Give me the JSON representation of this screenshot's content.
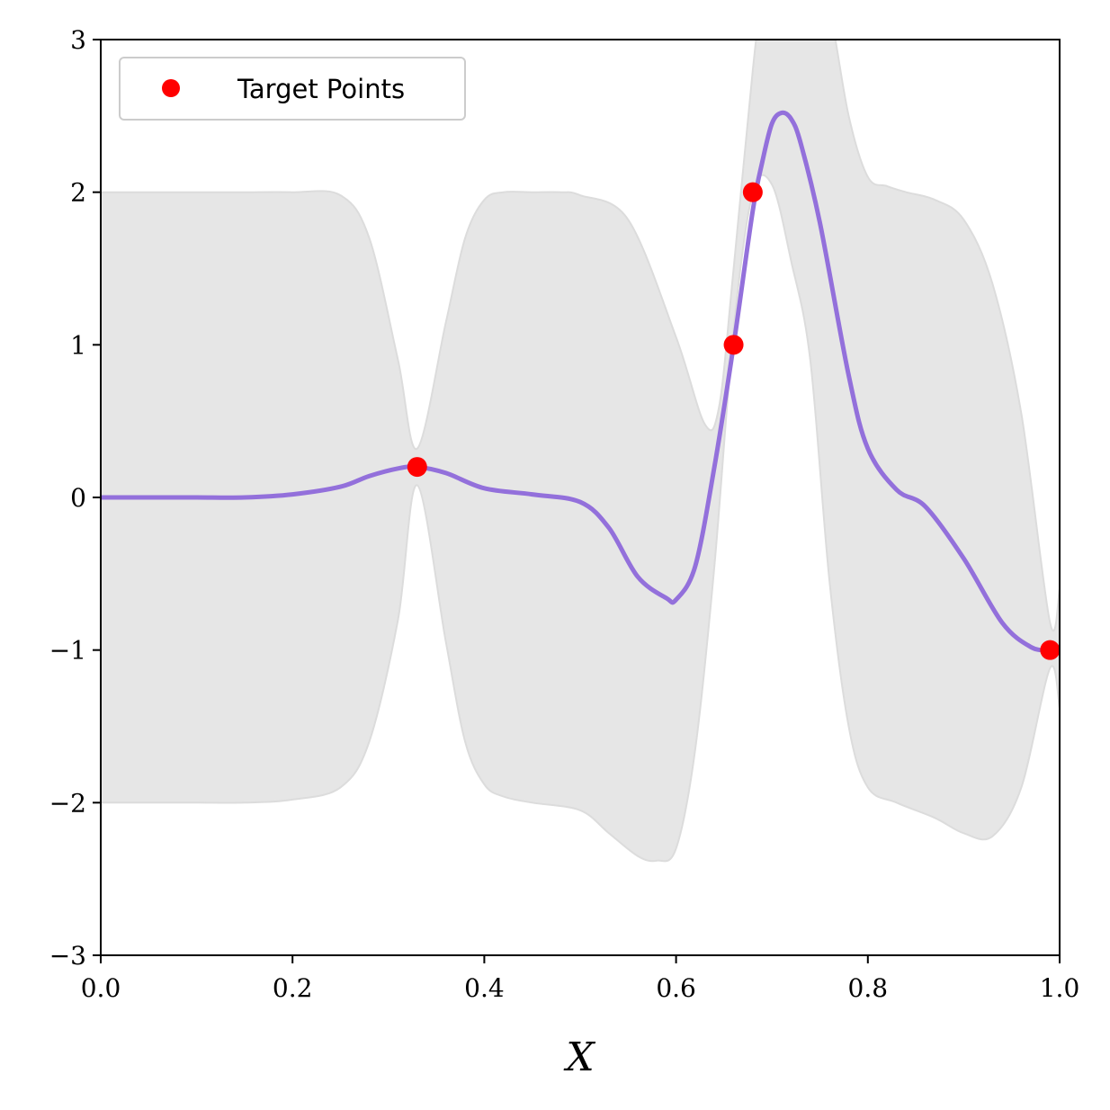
{
  "chart_data": {
    "type": "line",
    "title": "",
    "xlabel": "X",
    "ylabel": "",
    "xlim": [
      0.0,
      1.0
    ],
    "ylim": [
      -3,
      3
    ],
    "xticks": [
      "0.0",
      "0.2",
      "0.4",
      "0.6",
      "0.8",
      "1.0"
    ],
    "yticks": [
      "3",
      "2",
      "1",
      "0",
      "−1",
      "−2",
      "−3"
    ],
    "grid": false,
    "legend": {
      "position": "top-left",
      "entries": [
        "Target Points"
      ]
    },
    "colors": {
      "mean": "#9370DB",
      "band": "#e6e6e6",
      "band_edge": "#dcdcdc",
      "points": "#ff0000"
    },
    "series": [
      {
        "kind": "mean-line",
        "x": [
          0.0,
          0.05,
          0.1,
          0.15,
          0.2,
          0.25,
          0.28,
          0.31,
          0.33,
          0.36,
          0.4,
          0.45,
          0.5,
          0.53,
          0.56,
          0.59,
          0.6,
          0.62,
          0.64,
          0.66,
          0.68,
          0.69,
          0.7,
          0.71,
          0.72,
          0.73,
          0.75,
          0.78,
          0.8,
          0.83,
          0.86,
          0.9,
          0.94,
          0.97,
          0.99,
          1.0
        ],
        "y": [
          0.0,
          0.0,
          0.0,
          0.0,
          0.02,
          0.07,
          0.14,
          0.19,
          0.2,
          0.16,
          0.06,
          0.02,
          -0.03,
          -0.2,
          -0.52,
          -0.66,
          -0.67,
          -0.45,
          0.2,
          1.0,
          1.88,
          2.2,
          2.45,
          2.52,
          2.48,
          2.32,
          1.8,
          0.8,
          0.32,
          0.05,
          -0.06,
          -0.4,
          -0.82,
          -0.98,
          -1.0,
          -1.0
        ]
      },
      {
        "kind": "band-upper",
        "x": [
          0.0,
          0.05,
          0.1,
          0.15,
          0.2,
          0.25,
          0.28,
          0.31,
          0.33,
          0.36,
          0.38,
          0.4,
          0.42,
          0.45,
          0.48,
          0.5,
          0.55,
          0.6,
          0.63,
          0.645,
          0.66,
          0.68,
          0.69,
          0.7,
          0.72,
          0.74,
          0.76,
          0.78,
          0.8,
          0.82,
          0.84,
          0.87,
          0.9,
          0.93,
          0.96,
          0.99,
          1.0
        ],
        "y": [
          2.0,
          2.0,
          2.0,
          2.0,
          2.0,
          1.98,
          1.7,
          0.9,
          0.32,
          1.15,
          1.7,
          1.95,
          2.0,
          2.0,
          2.0,
          1.98,
          1.82,
          1.05,
          0.48,
          0.6,
          1.5,
          2.8,
          3.3,
          3.5,
          3.6,
          3.55,
          3.2,
          2.5,
          2.1,
          2.04,
          2.0,
          1.95,
          1.82,
          1.4,
          0.55,
          -0.82,
          -0.6
        ]
      },
      {
        "kind": "band-lower",
        "x": [
          0.0,
          0.05,
          0.1,
          0.15,
          0.2,
          0.25,
          0.28,
          0.31,
          0.33,
          0.36,
          0.38,
          0.4,
          0.42,
          0.45,
          0.5,
          0.53,
          0.56,
          0.58,
          0.6,
          0.62,
          0.64,
          0.66,
          0.68,
          0.7,
          0.72,
          0.74,
          0.76,
          0.78,
          0.8,
          0.83,
          0.87,
          0.9,
          0.93,
          0.96,
          0.99,
          1.0
        ],
        "y": [
          -2.0,
          -2.0,
          -2.0,
          -2.0,
          -1.98,
          -1.9,
          -1.6,
          -0.8,
          0.08,
          -0.95,
          -1.6,
          -1.88,
          -1.96,
          -2.0,
          -2.05,
          -2.2,
          -2.35,
          -2.38,
          -2.3,
          -1.65,
          -0.45,
          1.1,
          2.0,
          2.05,
          1.55,
          0.9,
          -0.55,
          -1.5,
          -1.9,
          -2.0,
          -2.1,
          -2.2,
          -2.22,
          -1.9,
          -1.12,
          -1.38
        ]
      },
      {
        "kind": "points",
        "name": "Target Points",
        "x": [
          0.33,
          0.66,
          0.68,
          0.99
        ],
        "y": [
          0.2,
          1.0,
          2.0,
          -1.0
        ]
      }
    ]
  }
}
